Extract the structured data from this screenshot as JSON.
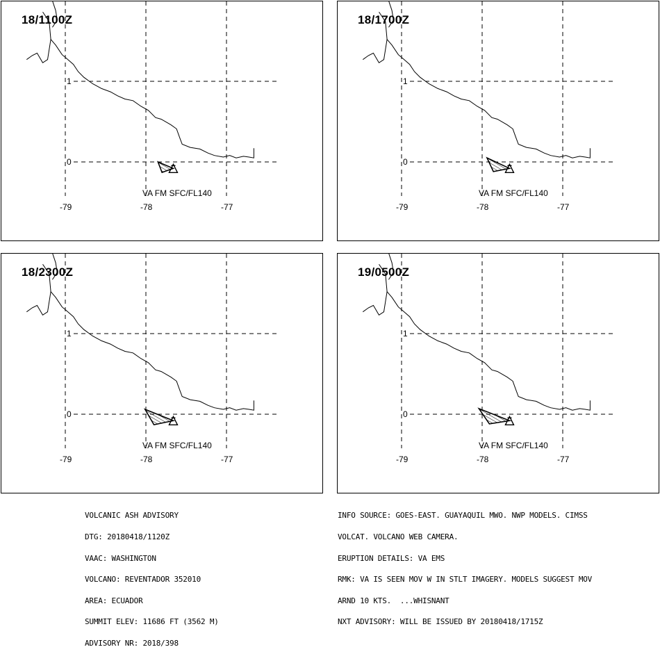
{
  "panels": [
    {
      "time": "18/1100Z",
      "annotation": "VA FM SFC/FL140"
    },
    {
      "time": "18/1700Z",
      "annotation": "VA FM SFC/FL140"
    },
    {
      "time": "18/2300Z",
      "annotation": "VA FM SFC/FL140"
    },
    {
      "time": "19/0500Z",
      "annotation": "VA FM SFC/FL140"
    }
  ],
  "chart_data": {
    "type": "map",
    "x_ticks": [
      "-79",
      "-78",
      "-77"
    ],
    "y_ticks": [
      "1",
      "0"
    ],
    "grid": "dashed",
    "volcano": {
      "lon": -77.66,
      "lat": -0.08
    },
    "ash_polygons": [
      [
        [
          -77.66,
          -0.08
        ],
        [
          -77.85,
          0.0
        ],
        [
          -77.8,
          -0.13
        ]
      ],
      [
        [
          -77.66,
          -0.08
        ],
        [
          -77.94,
          0.05
        ],
        [
          -77.86,
          -0.12
        ]
      ],
      [
        [
          -77.66,
          -0.08
        ],
        [
          -78.01,
          0.06
        ],
        [
          -77.9,
          -0.13
        ]
      ],
      [
        [
          -77.66,
          -0.08
        ],
        [
          -78.04,
          0.07
        ],
        [
          -77.91,
          -0.12
        ]
      ]
    ],
    "coastline": [
      [
        -79.48,
        1.27
      ],
      [
        -79.41,
        1.32
      ],
      [
        -79.35,
        1.35
      ],
      [
        -79.28,
        1.23
      ],
      [
        -79.22,
        1.27
      ],
      [
        -79.18,
        1.52
      ],
      [
        -79.12,
        1.45
      ],
      [
        -79.04,
        1.33
      ],
      [
        -78.98,
        1.28
      ],
      [
        -78.9,
        1.21
      ],
      [
        -78.84,
        1.12
      ],
      [
        -78.77,
        1.05
      ],
      [
        -78.66,
        0.97
      ],
      [
        -78.55,
        0.91
      ],
      [
        -78.44,
        0.87
      ],
      [
        -78.35,
        0.82
      ],
      [
        -78.26,
        0.78
      ],
      [
        -78.16,
        0.76
      ],
      [
        -78.06,
        0.69
      ],
      [
        -77.97,
        0.64
      ],
      [
        -77.88,
        0.55
      ],
      [
        -77.81,
        0.53
      ],
      [
        -77.69,
        0.46
      ],
      [
        -77.62,
        0.41
      ],
      [
        -77.58,
        0.3
      ],
      [
        -77.55,
        0.22
      ],
      [
        -77.45,
        0.18
      ],
      [
        -77.33,
        0.16
      ],
      [
        -77.23,
        0.11
      ],
      [
        -77.15,
        0.08
      ],
      [
        -77.04,
        0.06
      ],
      [
        -76.96,
        0.08
      ],
      [
        -76.88,
        0.05
      ],
      [
        -76.79,
        0.07
      ],
      [
        -76.72,
        0.06
      ],
      [
        -76.66,
        0.05
      ],
      [
        -76.66,
        0.17
      ]
    ]
  },
  "footer_left": [
    "VOLCANIC ASH ADVISORY",
    "DTG: 20180418/1120Z",
    "VAAC: WASHINGTON",
    "VOLCANO: REVENTADOR 352010",
    "AREA: ECUADOR",
    "SUMMIT ELEV: 11686 FT (3562 M)",
    "ADVISORY NR: 2018/398"
  ],
  "footer_right": [
    "INFO SOURCE: GOES-EAST. GUAYAQUIL MWO. NWP MODELS. CIMSS",
    "VOLCAT. VOLCANO WEB CAMERA.",
    "ERUPTION DETAILS: VA EMS",
    "RMK: VA IS SEEN MOV W IN STLT IMAGERY. MODELS SUGGEST MOV",
    "ARND 10 KTS.  ...WHISNANT",
    "NXT ADVISORY: WILL BE ISSUED BY 20180418/1715Z"
  ]
}
